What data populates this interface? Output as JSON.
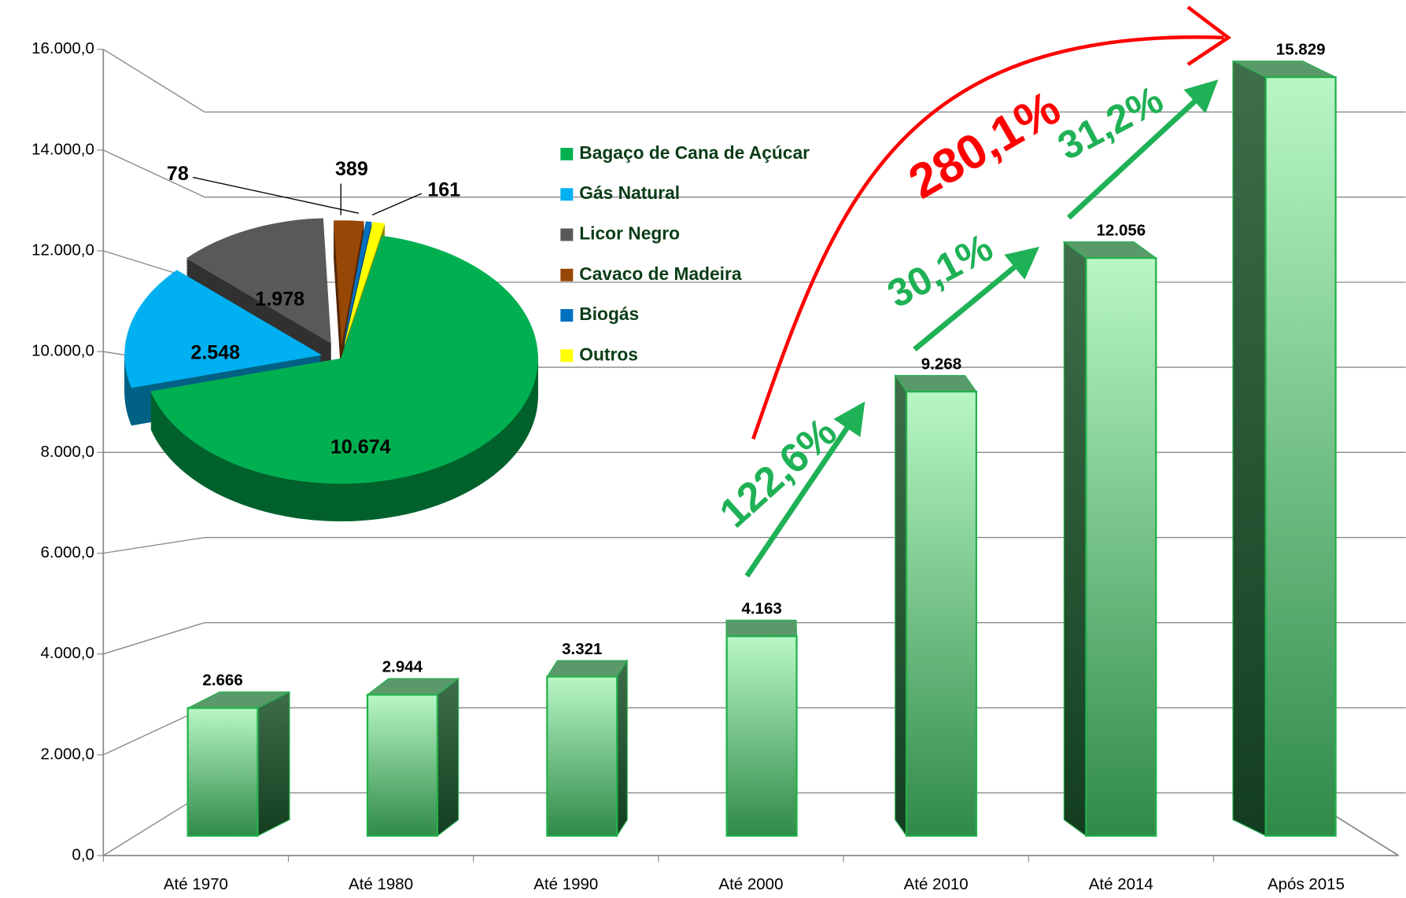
{
  "chart_data": [
    {
      "type": "bar",
      "categories": [
        "Até 1970",
        "Até 1980",
        "Até 1990",
        "Até 2000",
        "Até 2010",
        "Até 2014",
        "Após 2015"
      ],
      "values": [
        2666,
        2944,
        3321,
        4163,
        9268,
        12056,
        15829
      ],
      "value_labels": [
        "2.666",
        "2.944",
        "3.321",
        "4.163",
        "9.268",
        "12.056",
        "15.829"
      ],
      "color": "#22b14c",
      "ylim": [
        0,
        16000
      ],
      "yticks": [
        {
          "value": 0,
          "label": "0,0"
        },
        {
          "value": 2000,
          "label": "2.000,0"
        },
        {
          "value": 4000,
          "label": "4.000,0"
        },
        {
          "value": 6000,
          "label": "6.000,0"
        },
        {
          "value": 8000,
          "label": "8.000,0"
        },
        {
          "value": 10000,
          "label": "10.000,0"
        },
        {
          "value": 12000,
          "label": "12.000,0"
        },
        {
          "value": 14000,
          "label": "14.000,0"
        },
        {
          "value": 16000,
          "label": "16.000,0"
        }
      ],
      "grid": true,
      "annotations": [
        "122,6%",
        "30,1%",
        "31,2%",
        "280,1%"
      ]
    },
    {
      "type": "pie",
      "categories": [
        "Bagaço de Cana de Açúcar",
        "Gás Natural",
        "Licor Negro",
        "Cavaco de Madeira",
        "Biogás",
        "Outros"
      ],
      "values": [
        10674,
        2548,
        1978,
        389,
        78,
        161
      ],
      "value_labels": [
        "10.674",
        "2.548",
        "1.978",
        "389",
        "78",
        "161"
      ],
      "colors": [
        "#00b050",
        "#00b0f0",
        "#595959",
        "#974706",
        "#0070c0",
        "#ffff00"
      ],
      "legend": "right"
    }
  ]
}
